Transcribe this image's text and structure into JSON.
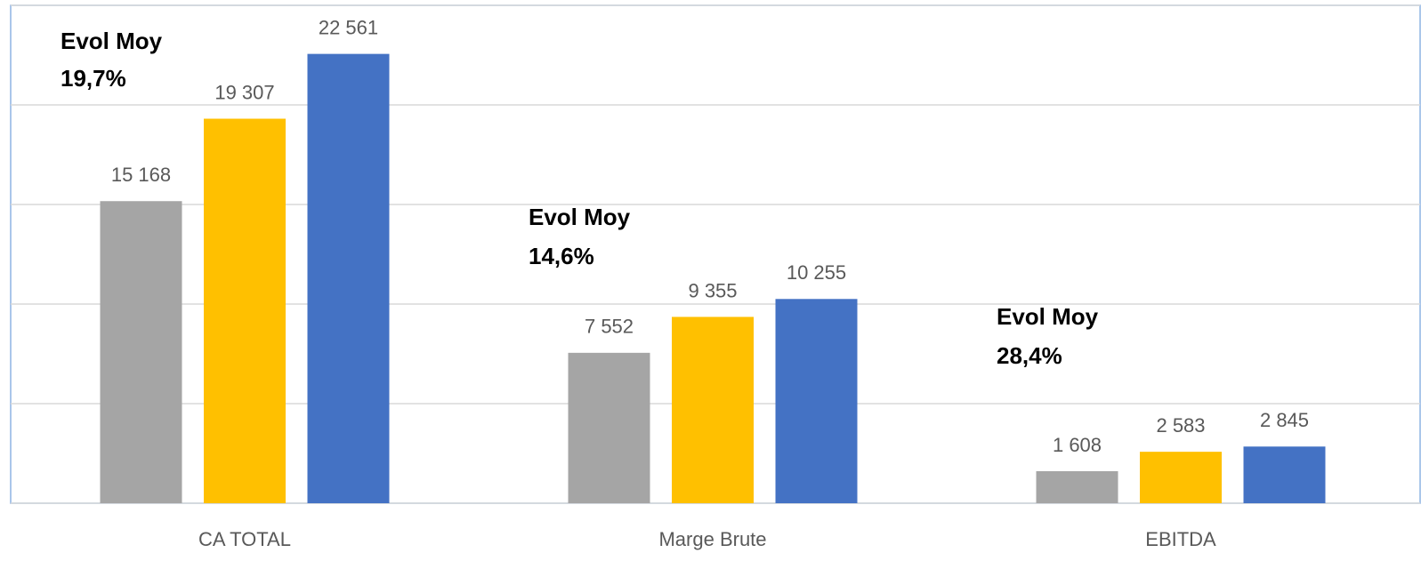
{
  "chart_data": {
    "type": "bar",
    "categories": [
      "CA TOTAL",
      "Marge Brute",
      "EBITDA"
    ],
    "series": [
      {
        "color": "#a5a5a5",
        "values": [
          15168,
          7552,
          1608
        ],
        "value_labels": [
          "15 168",
          "7 552",
          "1 608"
        ]
      },
      {
        "color": "#ffc000",
        "values": [
          19307,
          9355,
          2583
        ],
        "value_labels": [
          "19 307",
          "9 355",
          "2 583"
        ]
      },
      {
        "color": "#4472c4",
        "values": [
          22561,
          10255,
          2845
        ],
        "value_labels": [
          "22 561",
          "10 255",
          "2 845"
        ]
      }
    ],
    "annotations": [
      [
        "Evol Moy",
        "19,7%"
      ],
      [
        "Evol Moy",
        "14,6%"
      ],
      [
        "Evol Moy",
        "28,4%"
      ]
    ],
    "ylim": [
      0,
      25000
    ],
    "yticks": [
      0,
      5000,
      10000,
      15000,
      20000,
      25000
    ],
    "grid": true
  }
}
